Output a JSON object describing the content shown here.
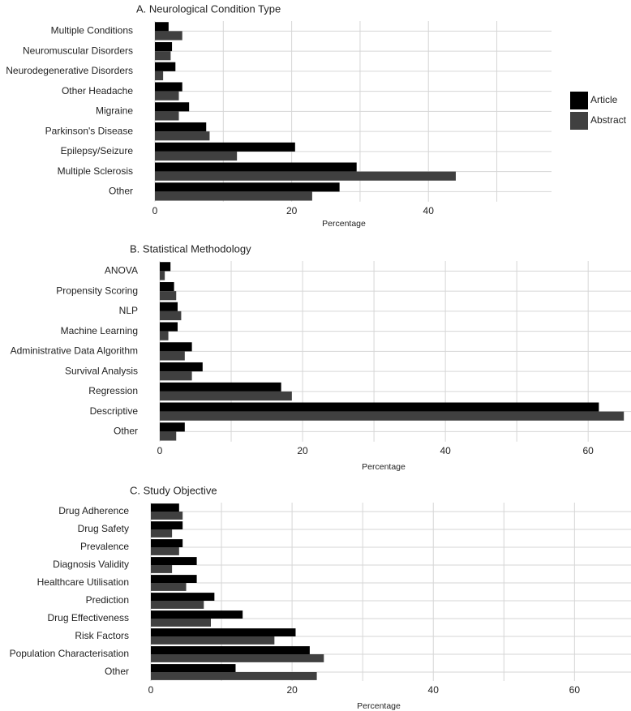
{
  "colors": {
    "article": "#000000",
    "abstract": "#404040",
    "grid": "#d6d6d6",
    "text": "#222222"
  },
  "legend": {
    "items": [
      {
        "label": "Article",
        "color": "#000000"
      },
      {
        "label": "Abstract",
        "color": "#404040"
      }
    ]
  },
  "chart_data": [
    {
      "type": "bar",
      "orientation": "horizontal",
      "title": "A. Neurological Condition Type",
      "xlabel": "Percentage",
      "xlim": [
        0,
        58
      ],
      "xticks": [
        0,
        20,
        40
      ],
      "categories": [
        "Multiple Conditions",
        "Neuromuscular Disorders",
        "Neurodegenerative Disorders",
        "Other Headache",
        "Migraine",
        "Parkinson's Disease",
        "Epilepsy/Seizure",
        "Multiple Sclerosis",
        "Other"
      ],
      "series": [
        {
          "name": "Article",
          "values": [
            2.0,
            2.5,
            3.0,
            4.0,
            5.0,
            7.5,
            20.5,
            29.5,
            27.0
          ]
        },
        {
          "name": "Abstract",
          "values": [
            4.0,
            2.3,
            1.2,
            3.5,
            3.5,
            8.0,
            12.0,
            44.0,
            23.0
          ]
        }
      ]
    },
    {
      "type": "bar",
      "orientation": "horizontal",
      "title": "B. Statistical Methodology",
      "xlabel": "Percentage",
      "xlim": [
        0,
        66
      ],
      "xticks": [
        0,
        20,
        40,
        60
      ],
      "categories": [
        "ANOVA",
        "Propensity Scoring",
        "NLP",
        "Machine Learning",
        "Administrative Data Algorithm",
        "Survival Analysis",
        "Regression",
        "Descriptive",
        "Other"
      ],
      "series": [
        {
          "name": "Article",
          "values": [
            1.5,
            2.0,
            2.5,
            2.5,
            4.5,
            6.0,
            17.0,
            61.5,
            3.5
          ]
        },
        {
          "name": "Abstract",
          "values": [
            0.7,
            2.3,
            3.0,
            1.2,
            3.5,
            4.5,
            18.5,
            65.0,
            2.3
          ]
        }
      ]
    },
    {
      "type": "bar",
      "orientation": "horizontal",
      "title": "C. Study Objective",
      "xlabel": "Percentage",
      "xlim": [
        0,
        68
      ],
      "xticks": [
        0,
        20,
        40,
        60
      ],
      "categories": [
        "Drug Adherence",
        "Drug Safety",
        "Prevalence",
        "Diagnosis Validity",
        "Healthcare Utilisation",
        "Prediction",
        "Drug Effectiveness",
        "Risk Factors",
        "Population Characterisation",
        "Other"
      ],
      "series": [
        {
          "name": "Article",
          "values": [
            4.0,
            4.5,
            4.5,
            6.5,
            6.5,
            9.0,
            13.0,
            20.5,
            22.5,
            12.0
          ]
        },
        {
          "name": "Abstract",
          "values": [
            4.5,
            3.0,
            4.0,
            3.0,
            5.0,
            7.5,
            8.5,
            17.5,
            24.5,
            23.5
          ]
        }
      ]
    }
  ]
}
